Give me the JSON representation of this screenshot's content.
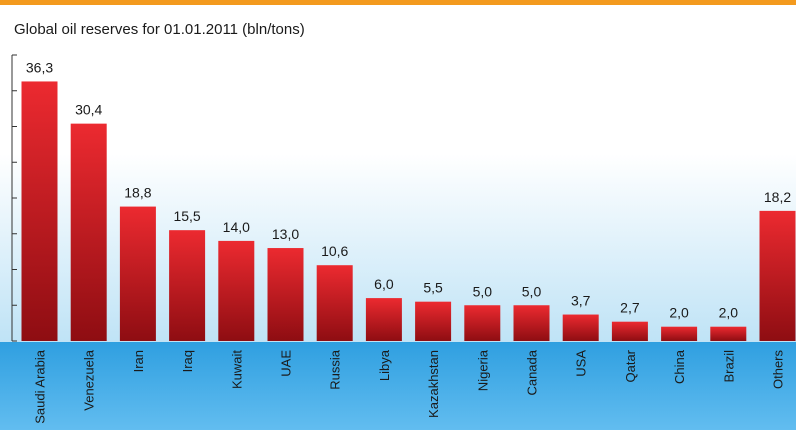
{
  "chart_data": {
    "type": "bar",
    "title": "Global oil reserves for 01.01.2011 (bln/tons)",
    "categories": [
      "Saudi Arabia",
      "Venezuela",
      "Iran",
      "Iraq",
      "Kuwait",
      "UAE",
      "Russia",
      "Libya",
      "Kazakhstan",
      "Nigeria",
      "Canada",
      "USA",
      "Qatar",
      "China",
      "Brazil",
      "Others"
    ],
    "values": [
      36.3,
      30.4,
      18.8,
      15.5,
      14.0,
      13.0,
      10.6,
      6.0,
      5.5,
      5.0,
      5.0,
      3.7,
      2.7,
      2.0,
      2.0,
      18.2
    ],
    "value_labels": [
      "36,3",
      "30,4",
      "18,8",
      "15,5",
      "14,0",
      "13,0",
      "10,6",
      "6,0",
      "5,5",
      "5,0",
      "5,0",
      "3,7",
      "2,7",
      "2,0",
      "2,0",
      "18,2"
    ],
    "color": "#d42027",
    "ylim": [
      0,
      40
    ],
    "yticks": [
      0,
      5,
      10,
      15,
      20,
      25,
      30,
      35
    ]
  }
}
